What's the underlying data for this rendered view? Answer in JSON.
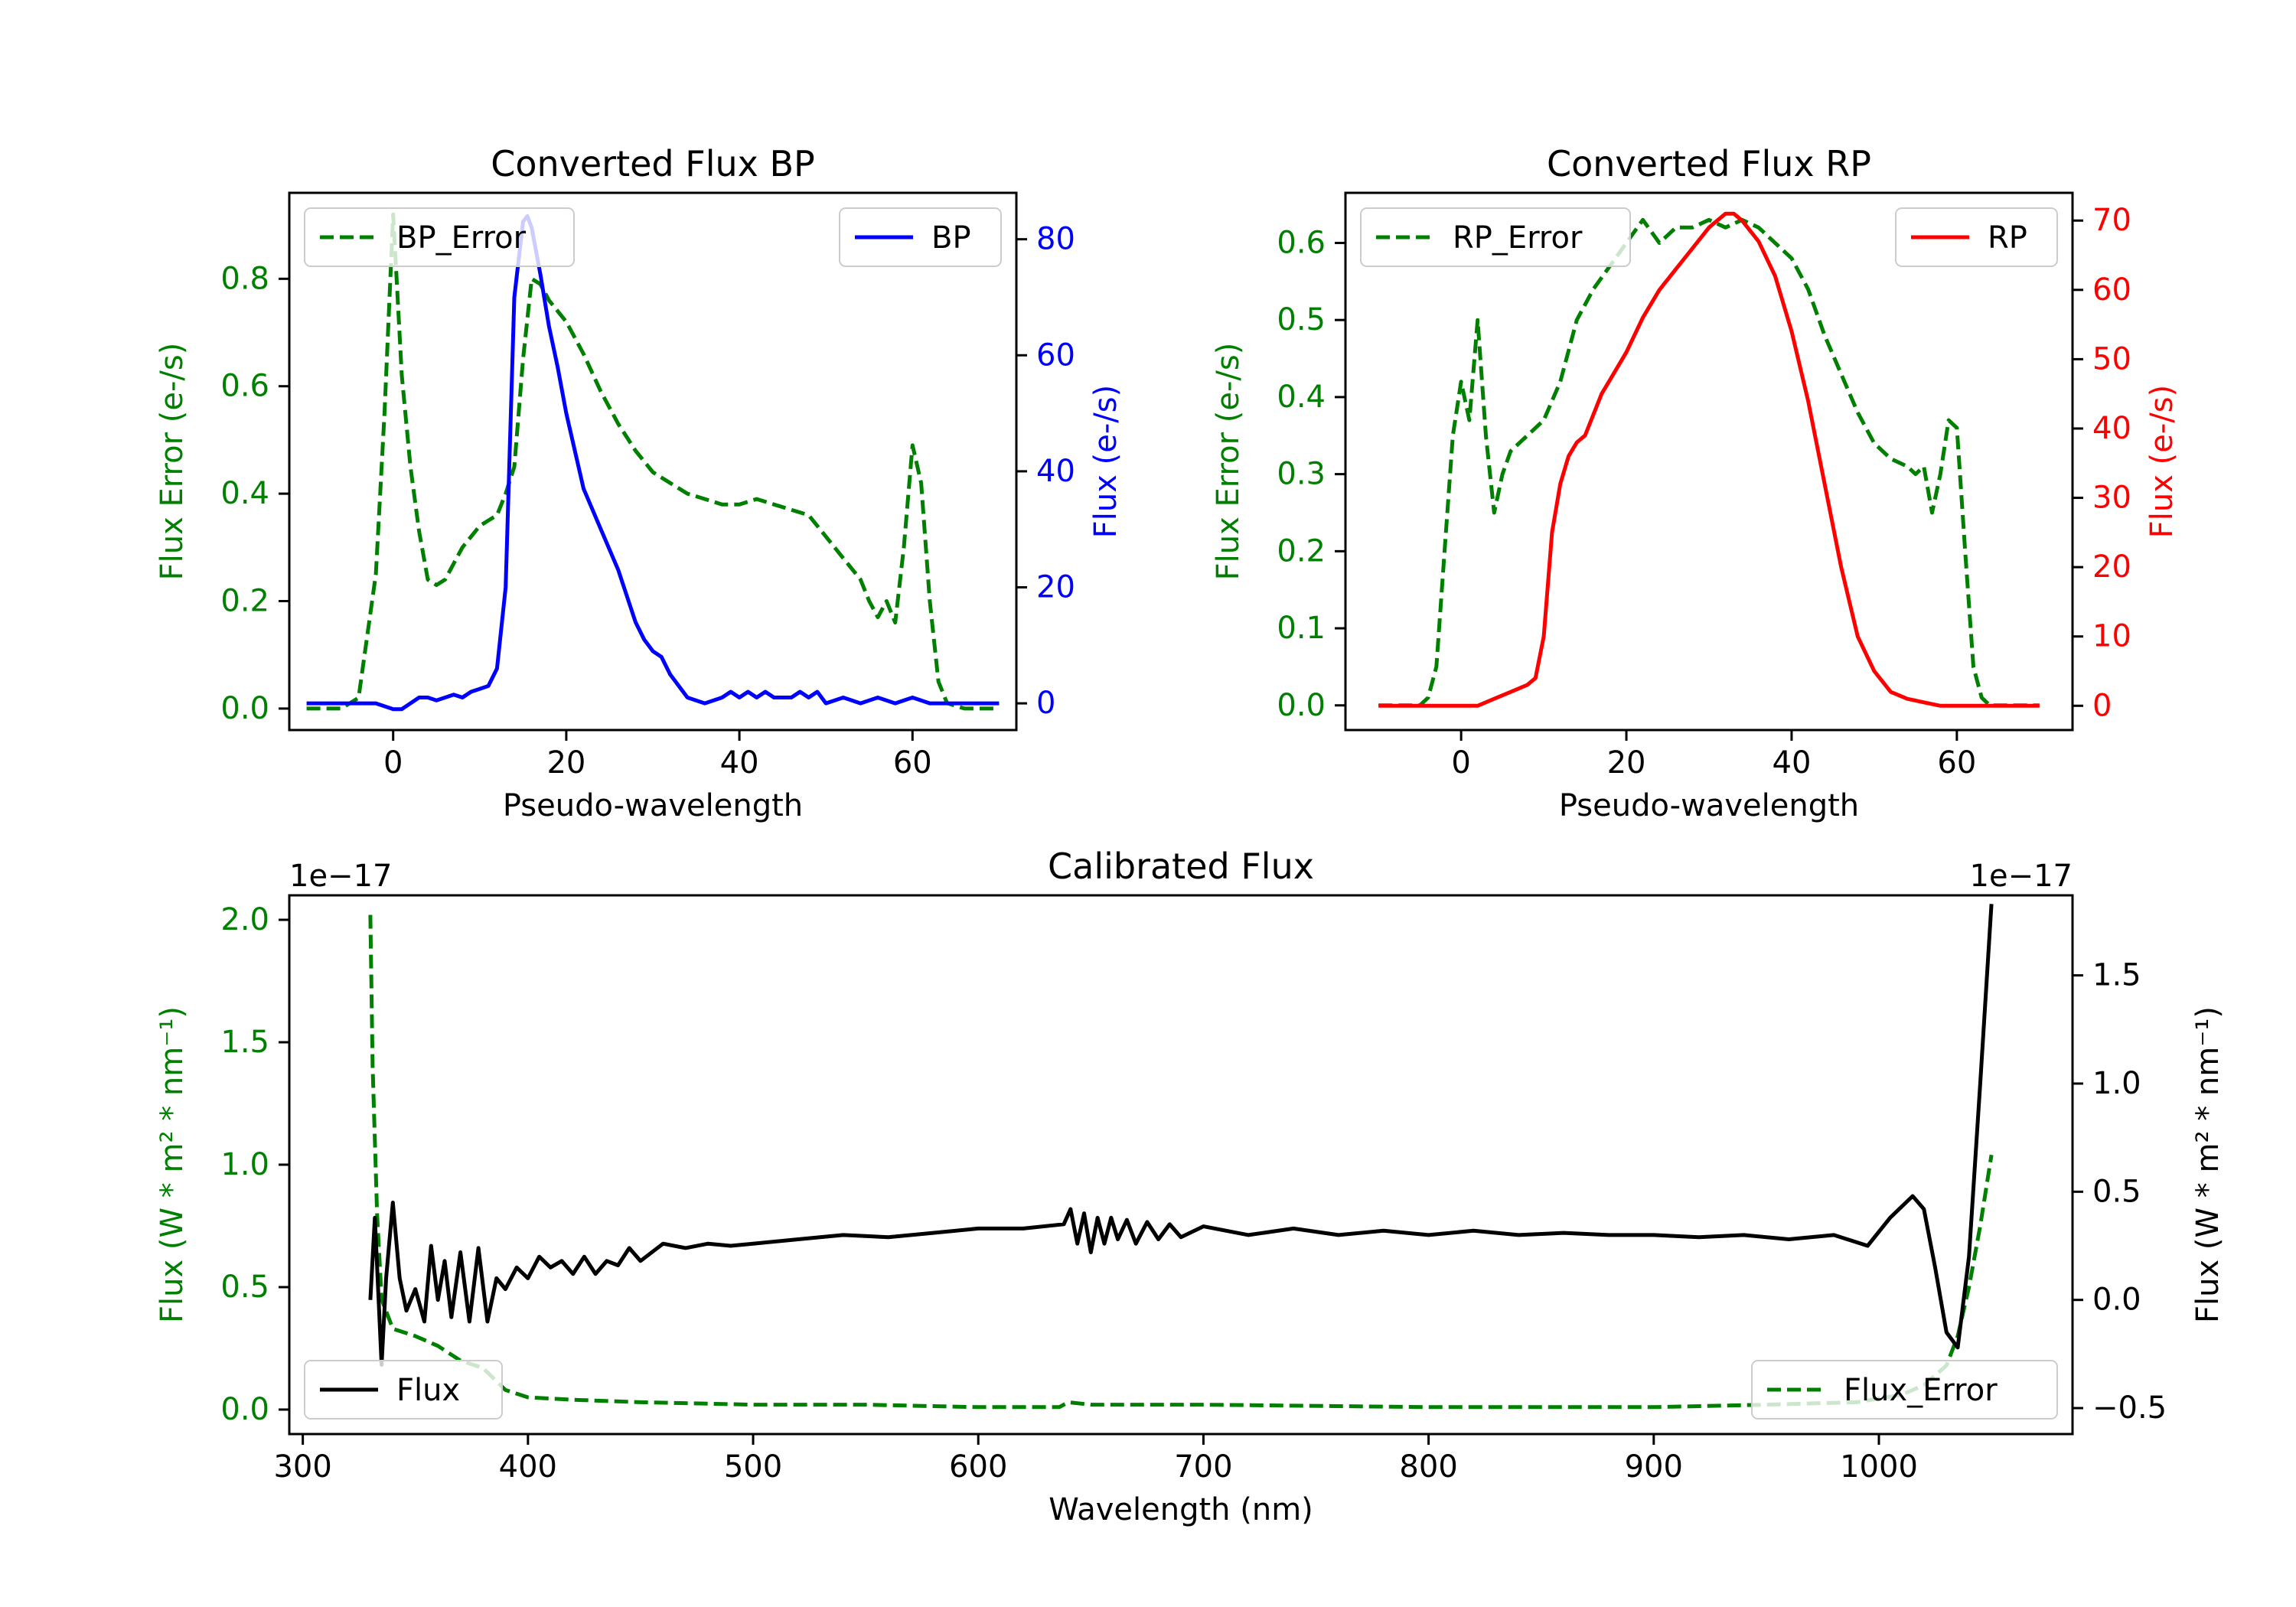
{
  "chart_data": [
    {
      "type": "line",
      "title": "Converted Flux BP",
      "xlabel": "Pseudo-wavelength",
      "ylabel_left": "Flux Error (e-/s)",
      "ylabel_right": "Flux (e-/s)",
      "xlim": [
        -12,
        72
      ],
      "ylim_left": [
        -0.04,
        0.96
      ],
      "ylim_right": [
        -4.6,
        88
      ],
      "xticks": [
        0,
        20,
        40,
        60
      ],
      "yticks_left": [
        "0.0",
        "0.2",
        "0.4",
        "0.6",
        "0.8"
      ],
      "yticks_right": [
        "0",
        "20",
        "40",
        "60",
        "80"
      ],
      "colors": {
        "left": "#008000",
        "right": "#0000ff"
      },
      "legend_left": {
        "label": "BP_Error",
        "placement": "upper-left"
      },
      "legend_right": {
        "label": "BP",
        "placement": "upper-right"
      },
      "series": [
        {
          "name": "BP_Error",
          "axis": "left",
          "style": "dashed",
          "color": "#008000",
          "x": [
            -10,
            -6,
            -4,
            -2,
            -1,
            0,
            1,
            2,
            3,
            4,
            5,
            6,
            8,
            10,
            12,
            13,
            14,
            15,
            16,
            17,
            18,
            20,
            22,
            24,
            26,
            28,
            30,
            32,
            34,
            36,
            38,
            40,
            42,
            44,
            46,
            48,
            50,
            52,
            54,
            55,
            56,
            57,
            58,
            59,
            60,
            61,
            62,
            63,
            64,
            66,
            70
          ],
          "values": [
            0.0,
            0.0,
            0.02,
            0.25,
            0.55,
            0.92,
            0.62,
            0.45,
            0.33,
            0.24,
            0.23,
            0.24,
            0.3,
            0.34,
            0.36,
            0.4,
            0.45,
            0.65,
            0.8,
            0.79,
            0.76,
            0.72,
            0.66,
            0.59,
            0.53,
            0.48,
            0.44,
            0.42,
            0.4,
            0.39,
            0.38,
            0.38,
            0.39,
            0.38,
            0.37,
            0.36,
            0.32,
            0.28,
            0.24,
            0.2,
            0.17,
            0.2,
            0.16,
            0.3,
            0.49,
            0.42,
            0.2,
            0.05,
            0.01,
            0.0,
            0.0
          ]
        },
        {
          "name": "BP",
          "axis": "right",
          "style": "solid",
          "color": "#0000ff",
          "x": [
            -10,
            -6,
            -2,
            0,
            1,
            2,
            3,
            4,
            5,
            6,
            7,
            8,
            9,
            10,
            11,
            12,
            13,
            14,
            15,
            15.5,
            16,
            17,
            18,
            19,
            20,
            22,
            24,
            26,
            28,
            29,
            30,
            31,
            32,
            33,
            34,
            36,
            38,
            39,
            40,
            41,
            42,
            43,
            44,
            45,
            46,
            47,
            48,
            49,
            50,
            52,
            54,
            56,
            58,
            60,
            62,
            66,
            70
          ],
          "values": [
            0,
            0,
            0,
            -1,
            -1,
            0,
            1,
            1,
            0.5,
            1,
            1.5,
            1,
            2,
            2.5,
            3,
            6,
            20,
            70,
            83,
            84,
            82,
            74,
            65,
            58,
            50,
            37,
            30,
            23,
            14,
            11,
            9,
            8,
            5,
            3,
            1,
            0,
            1,
            2,
            1,
            2,
            1,
            2,
            1,
            1,
            1,
            2,
            1,
            2,
            0,
            1,
            0,
            1,
            0,
            1,
            0,
            0,
            0
          ]
        }
      ]
    },
    {
      "type": "line",
      "title": "Converted Flux RP",
      "xlabel": "Pseudo-wavelength",
      "ylabel_left": "Flux Error (e-/s)",
      "ylabel_right": "Flux (e-/s)",
      "xlim": [
        -14,
        74
      ],
      "ylim_left": [
        -0.032,
        0.665
      ],
      "ylim_right": [
        -3.5,
        74
      ],
      "xticks": [
        0,
        20,
        40,
        60
      ],
      "yticks_left": [
        "0.0",
        "0.1",
        "0.2",
        "0.3",
        "0.4",
        "0.5",
        "0.6"
      ],
      "yticks_right": [
        "0",
        "10",
        "20",
        "30",
        "40",
        "50",
        "60",
        "70"
      ],
      "colors": {
        "left": "#008000",
        "right": "#ff0000"
      },
      "legend_left": {
        "label": "RP_Error",
        "placement": "upper-left"
      },
      "legend_right": {
        "label": "RP",
        "placement": "upper-right"
      },
      "series": [
        {
          "name": "RP_Error",
          "axis": "left",
          "style": "dashed",
          "color": "#008000",
          "x": [
            -10,
            -5,
            -4,
            -3,
            -2,
            -1,
            0,
            1,
            2,
            3,
            4,
            5,
            6,
            8,
            10,
            12,
            14,
            16,
            18,
            20,
            22,
            24,
            26,
            28,
            30,
            32,
            34,
            36,
            38,
            40,
            42,
            44,
            46,
            48,
            50,
            52,
            54,
            55,
            56,
            57,
            58,
            59,
            60,
            61,
            62,
            63,
            64,
            66,
            70
          ],
          "values": [
            0.0,
            0.0,
            0.01,
            0.05,
            0.2,
            0.35,
            0.42,
            0.37,
            0.5,
            0.35,
            0.25,
            0.3,
            0.33,
            0.35,
            0.37,
            0.42,
            0.5,
            0.54,
            0.57,
            0.6,
            0.63,
            0.6,
            0.62,
            0.62,
            0.63,
            0.62,
            0.63,
            0.62,
            0.6,
            0.58,
            0.54,
            0.48,
            0.43,
            0.38,
            0.34,
            0.32,
            0.31,
            0.3,
            0.31,
            0.25,
            0.3,
            0.37,
            0.36,
            0.2,
            0.05,
            0.01,
            0.0,
            0.0,
            0.0
          ]
        },
        {
          "name": "RP",
          "axis": "right",
          "style": "solid",
          "color": "#ff0000",
          "x": [
            -10,
            0,
            2,
            4,
            6,
            8,
            9,
            10,
            11,
            12,
            13,
            14,
            15,
            16,
            17,
            18,
            20,
            22,
            24,
            26,
            28,
            30,
            31,
            32,
            33,
            34,
            36,
            38,
            40,
            42,
            44,
            46,
            48,
            50,
            52,
            54,
            56,
            58,
            60,
            62,
            66,
            70
          ],
          "values": [
            0,
            0,
            0,
            1,
            2,
            3,
            4,
            10,
            25,
            32,
            36,
            38,
            39,
            42,
            45,
            47,
            51,
            56,
            60,
            63,
            66,
            69,
            70,
            71,
            71,
            70,
            67,
            62,
            54,
            44,
            32,
            20,
            10,
            5,
            2,
            1,
            0.5,
            0,
            0,
            0,
            0,
            0
          ]
        }
      ]
    },
    {
      "type": "line",
      "title": "Calibrated Flux",
      "xlabel": "Wavelength (nm)",
      "ylabel_left": "Flux (W * m² * nm⁻¹)",
      "ylabel_right": "Flux (W * m² * nm⁻¹)",
      "offset_left": "1e−17",
      "offset_right": "1e−17",
      "xlim": [
        294,
        1086
      ],
      "ylim_left": [
        -0.1,
        2.1
      ],
      "ylim_right": [
        -0.62,
        1.87
      ],
      "xticks": [
        300,
        400,
        500,
        600,
        700,
        800,
        900,
        1000
      ],
      "yticks_left": [
        "0.0",
        "0.5",
        "1.0",
        "1.5",
        "2.0"
      ],
      "yticks_right": [
        "−0.5",
        "0.0",
        "0.5",
        "1.0",
        "1.5"
      ],
      "colors": {
        "left": "#008000",
        "right": "#000000"
      },
      "legend_left": {
        "label": "Flux",
        "placement": "lower-left"
      },
      "legend_right": {
        "label": "Flux_Error",
        "placement": "lower-right"
      },
      "series": [
        {
          "name": "Flux_Error",
          "axis": "left",
          "style": "dashed",
          "color": "#008000",
          "x": [
            330,
            331,
            333,
            335,
            340,
            350,
            360,
            370,
            380,
            390,
            400,
            420,
            450,
            500,
            550,
            600,
            636,
            640,
            650,
            700,
            800,
            900,
            950,
            990,
            1010,
            1020,
            1030,
            1035,
            1040,
            1045,
            1050
          ],
          "values": [
            2.02,
            1.4,
            0.8,
            0.45,
            0.33,
            0.3,
            0.26,
            0.2,
            0.17,
            0.08,
            0.05,
            0.04,
            0.03,
            0.02,
            0.02,
            0.01,
            0.01,
            0.03,
            0.02,
            0.02,
            0.01,
            0.01,
            0.02,
            0.03,
            0.06,
            0.1,
            0.18,
            0.3,
            0.5,
            0.75,
            1.04
          ]
        },
        {
          "name": "Flux",
          "axis": "right",
          "style": "solid",
          "color": "#000000",
          "x": [
            330,
            332,
            335,
            337,
            340,
            343,
            346,
            350,
            354,
            357,
            360,
            363,
            366,
            370,
            374,
            378,
            382,
            386,
            390,
            395,
            400,
            405,
            410,
            415,
            420,
            425,
            430,
            435,
            440,
            445,
            450,
            460,
            470,
            480,
            490,
            500,
            520,
            540,
            560,
            580,
            600,
            620,
            638,
            641,
            644,
            647,
            650,
            653,
            656,
            659,
            662,
            666,
            670,
            675,
            680,
            685,
            690,
            700,
            720,
            740,
            760,
            780,
            800,
            820,
            840,
            860,
            880,
            900,
            920,
            940,
            960,
            980,
            995,
            1005,
            1015,
            1020,
            1025,
            1030,
            1035,
            1040,
            1045,
            1050
          ],
          "values": [
            0.0,
            0.38,
            -0.3,
            0.1,
            0.45,
            0.1,
            -0.05,
            0.05,
            -0.1,
            0.25,
            0.0,
            0.18,
            -0.08,
            0.22,
            -0.1,
            0.24,
            -0.1,
            0.1,
            0.05,
            0.15,
            0.1,
            0.2,
            0.15,
            0.18,
            0.12,
            0.2,
            0.12,
            0.18,
            0.16,
            0.24,
            0.18,
            0.26,
            0.24,
            0.26,
            0.25,
            0.26,
            0.28,
            0.3,
            0.29,
            0.31,
            0.33,
            0.33,
            0.35,
            0.42,
            0.26,
            0.4,
            0.22,
            0.38,
            0.26,
            0.38,
            0.28,
            0.37,
            0.26,
            0.36,
            0.28,
            0.35,
            0.29,
            0.34,
            0.3,
            0.33,
            0.3,
            0.32,
            0.3,
            0.32,
            0.3,
            0.31,
            0.3,
            0.3,
            0.29,
            0.3,
            0.28,
            0.3,
            0.25,
            0.38,
            0.48,
            0.42,
            0.15,
            -0.15,
            -0.22,
            0.2,
            1.0,
            1.83
          ]
        }
      ]
    }
  ]
}
